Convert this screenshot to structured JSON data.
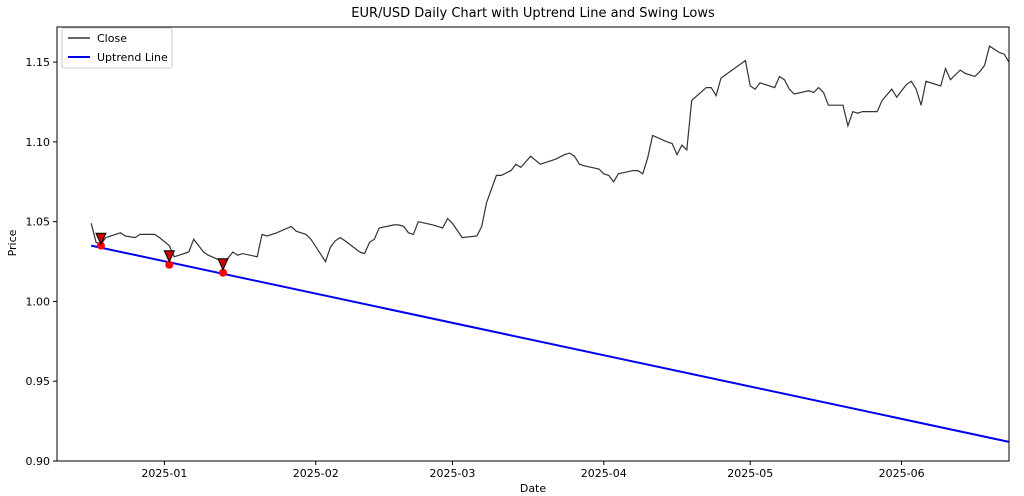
{
  "chart_data": {
    "type": "line",
    "title": "EUR/USD Daily Chart with Uptrend Line and Swing Lows",
    "xlabel": "Date",
    "ylabel": "Price",
    "ylim": [
      0.9,
      1.172
    ],
    "xlim": [
      "2024-12-10",
      "2025-06-23"
    ],
    "grid": false,
    "legend_position": "top-left",
    "x_ticks": [
      {
        "date": "2025-01-01",
        "label": "2025-01"
      },
      {
        "date": "2025-02-01",
        "label": "2025-02"
      },
      {
        "date": "2025-03-01",
        "label": "2025-03"
      },
      {
        "date": "2025-04-01",
        "label": "2025-04"
      },
      {
        "date": "2025-05-01",
        "label": "2025-05"
      },
      {
        "date": "2025-06-01",
        "label": "2025-06"
      }
    ],
    "y_ticks": [
      {
        "value": 0.9,
        "label": "0.90"
      },
      {
        "value": 0.95,
        "label": "0.95"
      },
      {
        "value": 1.0,
        "label": "1.00"
      },
      {
        "value": 1.05,
        "label": "1.05"
      },
      {
        "value": 1.1,
        "label": "1.10"
      },
      {
        "value": 1.15,
        "label": "1.15"
      }
    ],
    "series": [
      {
        "name": "Close",
        "color": "#333333",
        "points": [
          [
            "2024-12-17",
            1.049
          ],
          [
            "2024-12-18",
            1.037
          ],
          [
            "2024-12-19",
            1.036
          ],
          [
            "2024-12-20",
            1.04
          ],
          [
            "2024-12-23",
            1.043
          ],
          [
            "2024-12-24",
            1.041
          ],
          [
            "2024-12-26",
            1.04
          ],
          [
            "2024-12-27",
            1.042
          ],
          [
            "2024-12-30",
            1.042
          ],
          [
            "2024-12-31",
            1.04
          ],
          [
            "2025-01-02",
            1.035
          ],
          [
            "2025-01-03",
            1.028
          ],
          [
            "2025-01-06",
            1.031
          ],
          [
            "2025-01-07",
            1.039
          ],
          [
            "2025-01-08",
            1.035
          ],
          [
            "2025-01-09",
            1.031
          ],
          [
            "2025-01-10",
            1.029
          ],
          [
            "2025-01-13",
            1.025
          ],
          [
            "2025-01-14",
            1.027
          ],
          [
            "2025-01-15",
            1.031
          ],
          [
            "2025-01-16",
            1.029
          ],
          [
            "2025-01-17",
            1.03
          ],
          [
            "2025-01-20",
            1.028
          ],
          [
            "2025-01-21",
            1.042
          ],
          [
            "2025-01-22",
            1.041
          ],
          [
            "2025-01-23",
            1.042
          ],
          [
            "2025-01-24",
            1.043
          ],
          [
            "2025-01-27",
            1.047
          ],
          [
            "2025-01-28",
            1.044
          ],
          [
            "2025-01-29",
            1.043
          ],
          [
            "2025-01-30",
            1.042
          ],
          [
            "2025-01-31",
            1.039
          ],
          [
            "2025-02-03",
            1.025
          ],
          [
            "2025-02-04",
            1.034
          ],
          [
            "2025-02-05",
            1.038
          ],
          [
            "2025-02-06",
            1.04
          ],
          [
            "2025-02-07",
            1.038
          ],
          [
            "2025-02-10",
            1.031
          ],
          [
            "2025-02-11",
            1.03
          ],
          [
            "2025-02-12",
            1.037
          ],
          [
            "2025-02-13",
            1.039
          ],
          [
            "2025-02-14",
            1.046
          ],
          [
            "2025-02-17",
            1.048
          ],
          [
            "2025-02-18",
            1.048
          ],
          [
            "2025-02-19",
            1.047
          ],
          [
            "2025-02-20",
            1.043
          ],
          [
            "2025-02-21",
            1.042
          ],
          [
            "2025-02-22",
            1.05
          ],
          [
            "2025-02-25",
            1.048
          ],
          [
            "2025-02-26",
            1.047
          ],
          [
            "2025-02-27",
            1.046
          ],
          [
            "2025-02-28",
            1.052
          ],
          [
            "2025-03-01",
            1.049
          ],
          [
            "2025-03-03",
            1.04
          ],
          [
            "2025-03-06",
            1.041
          ],
          [
            "2025-03-07",
            1.047
          ],
          [
            "2025-03-08",
            1.062
          ],
          [
            "2025-03-10",
            1.079
          ],
          [
            "2025-03-11",
            1.079
          ],
          [
            "2025-03-13",
            1.082
          ],
          [
            "2025-03-14",
            1.086
          ],
          [
            "2025-03-15",
            1.084
          ],
          [
            "2025-03-17",
            1.091
          ],
          [
            "2025-03-19",
            1.086
          ],
          [
            "2025-03-20",
            1.087
          ],
          [
            "2025-03-22",
            1.089
          ],
          [
            "2025-03-24",
            1.092
          ],
          [
            "2025-03-25",
            1.093
          ],
          [
            "2025-03-26",
            1.091
          ],
          [
            "2025-03-27",
            1.086
          ],
          [
            "2025-03-28",
            1.085
          ],
          [
            "2025-03-31",
            1.083
          ],
          [
            "2025-04-01",
            1.08
          ],
          [
            "2025-04-02",
            1.079
          ],
          [
            "2025-04-03",
            1.075
          ],
          [
            "2025-04-04",
            1.08
          ],
          [
            "2025-04-07",
            1.082
          ],
          [
            "2025-04-08",
            1.082
          ],
          [
            "2025-04-09",
            1.08
          ],
          [
            "2025-04-10",
            1.09
          ],
          [
            "2025-04-11",
            1.104
          ],
          [
            "2025-04-14",
            1.1
          ],
          [
            "2025-04-15",
            1.099
          ],
          [
            "2025-04-16",
            1.092
          ],
          [
            "2025-04-17",
            1.098
          ],
          [
            "2025-04-18",
            1.095
          ],
          [
            "2025-04-19",
            1.126
          ],
          [
            "2025-04-22",
            1.134
          ],
          [
            "2025-04-23",
            1.134
          ],
          [
            "2025-04-24",
            1.129
          ],
          [
            "2025-04-25",
            1.14
          ],
          [
            "2025-04-30",
            1.151
          ],
          [
            "2025-05-01",
            1.135
          ],
          [
            "2025-05-02",
            1.133
          ],
          [
            "2025-05-03",
            1.137
          ],
          [
            "2025-05-06",
            1.134
          ],
          [
            "2025-05-07",
            1.141
          ],
          [
            "2025-05-08",
            1.139
          ],
          [
            "2025-05-09",
            1.133
          ],
          [
            "2025-05-10",
            1.13
          ],
          [
            "2025-05-13",
            1.132
          ],
          [
            "2025-05-14",
            1.131
          ],
          [
            "2025-05-15",
            1.134
          ],
          [
            "2025-05-16",
            1.131
          ],
          [
            "2025-05-17",
            1.123
          ],
          [
            "2025-05-20",
            1.123
          ],
          [
            "2025-05-21",
            1.11
          ],
          [
            "2025-05-22",
            1.119
          ],
          [
            "2025-05-23",
            1.118
          ],
          [
            "2025-05-24",
            1.119
          ],
          [
            "2025-05-27",
            1.119
          ],
          [
            "2025-05-28",
            1.126
          ],
          [
            "2025-05-30",
            1.133
          ],
          [
            "2025-05-31",
            1.128
          ],
          [
            "2025-06-01",
            1.132
          ],
          [
            "2025-06-02",
            1.136
          ],
          [
            "2025-06-03",
            1.138
          ],
          [
            "2025-06-04",
            1.133
          ],
          [
            "2025-06-05",
            1.123
          ],
          [
            "2025-06-06",
            1.138
          ],
          [
            "2025-06-09",
            1.135
          ],
          [
            "2025-06-10",
            1.146
          ],
          [
            "2025-06-11",
            1.139
          ],
          [
            "2025-06-13",
            1.145
          ],
          [
            "2025-06-14",
            1.143
          ],
          [
            "2025-06-16",
            1.141
          ],
          [
            "2025-06-17",
            1.144
          ],
          [
            "2025-06-18",
            1.148
          ],
          [
            "2025-06-19",
            1.16
          ],
          [
            "2025-06-20",
            1.158
          ],
          [
            "2025-06-21",
            1.156
          ],
          [
            "2025-06-22",
            1.155
          ],
          [
            "2025-06-23",
            1.15
          ]
        ]
      },
      {
        "name": "Uptrend Line",
        "color": "#0000ee",
        "points": [
          [
            "2024-12-17",
            1.035
          ],
          [
            "2025-06-23",
            0.912
          ]
        ]
      }
    ],
    "swing_lows": [
      {
        "date": "2024-12-19",
        "value": 1.035
      },
      {
        "date": "2025-01-02",
        "value": 1.023
      },
      {
        "date": "2025-01-13",
        "value": 1.018
      }
    ],
    "swing_low_markers": [
      {
        "date": "2024-12-19",
        "value": 1.039
      },
      {
        "date": "2025-01-02",
        "value": 1.028
      },
      {
        "date": "2025-01-13",
        "value": 1.023
      }
    ],
    "colors": {
      "swing_low": "#ff0000",
      "marker_fill": "#cc0000",
      "marker_edge": "#000000"
    }
  }
}
